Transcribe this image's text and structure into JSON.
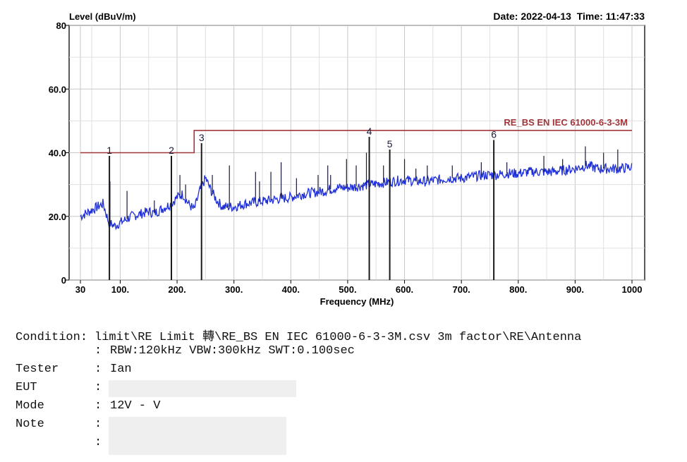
{
  "header": {
    "ylabel": "Level (dBuV/m)",
    "date_label": "Date:",
    "date": "2022-04-13",
    "time_label": "Time:",
    "time": "11:47:33"
  },
  "chart_data": {
    "type": "line",
    "xlabel": "Frequency (MHz)",
    "ylabel": "Level (dBuV/m)",
    "xlim": [
      30,
      1000
    ],
    "ylim": [
      0,
      80
    ],
    "x_ticks": [
      {
        "value": 30,
        "label": "30"
      },
      {
        "value": 100,
        "label": "100."
      },
      {
        "value": 200,
        "label": "200."
      },
      {
        "value": 300,
        "label": "300."
      },
      {
        "value": 400,
        "label": "400."
      },
      {
        "value": 500,
        "label": "500."
      },
      {
        "value": 600,
        "label": "600."
      },
      {
        "value": 700,
        "label": "700."
      },
      {
        "value": 800,
        "label": "800."
      },
      {
        "value": 900,
        "label": "900."
      },
      {
        "value": 1000,
        "label": "1000"
      }
    ],
    "y_ticks": [
      {
        "value": 0,
        "label": "0"
      },
      {
        "value": 20,
        "label": "20.0"
      },
      {
        "value": 40,
        "label": "40.0"
      },
      {
        "value": 60,
        "label": "60.0"
      },
      {
        "value": 80,
        "label": "80"
      }
    ],
    "grid": true,
    "limit_line": {
      "name": "RE_BS EN IEC 61000-6-3-3M",
      "color": "#a0353a",
      "segments": [
        {
          "x": [
            30,
            230
          ],
          "y": 40
        },
        {
          "x": [
            230,
            1000
          ],
          "y": 47
        }
      ]
    },
    "trace": {
      "color": "#1f2fd8",
      "x": [
        30,
        40,
        50,
        60,
        70,
        75,
        80,
        90,
        100,
        110,
        120,
        130,
        140,
        150,
        160,
        170,
        180,
        190,
        200,
        210,
        220,
        230,
        240,
        250,
        260,
        270,
        280,
        300,
        320,
        340,
        360,
        380,
        400,
        420,
        440,
        460,
        480,
        500,
        520,
        540,
        560,
        580,
        600,
        620,
        640,
        660,
        680,
        700,
        720,
        740,
        760,
        780,
        800,
        820,
        840,
        860,
        880,
        900,
        920,
        940,
        960,
        980,
        1000
      ],
      "y": [
        20,
        21,
        22,
        23,
        24,
        21,
        18,
        17,
        18,
        19,
        20,
        20.5,
        21,
        21.5,
        21,
        22,
        23,
        24,
        26,
        27,
        24,
        22,
        28,
        32,
        28,
        25,
        23,
        23,
        24,
        24.5,
        25,
        25.5,
        26,
        27,
        27.5,
        28,
        29,
        29,
        29.5,
        30,
        30.5,
        31,
        31.5,
        31,
        31,
        31.5,
        32,
        32,
        32.5,
        33,
        33,
        33.5,
        33.5,
        34,
        34,
        34,
        34.5,
        35,
        36,
        35,
        35,
        35,
        35.5
      ]
    },
    "spikes": [
      {
        "x": 82,
        "y": 31
      },
      {
        "x": 112,
        "y": 28
      },
      {
        "x": 160,
        "y": 25
      },
      {
        "x": 205,
        "y": 33
      },
      {
        "x": 215,
        "y": 30
      },
      {
        "x": 262,
        "y": 33
      },
      {
        "x": 292,
        "y": 36
      },
      {
        "x": 338,
        "y": 34
      },
      {
        "x": 345,
        "y": 31
      },
      {
        "x": 365,
        "y": 34
      },
      {
        "x": 383,
        "y": 37
      },
      {
        "x": 410,
        "y": 32
      },
      {
        "x": 448,
        "y": 33
      },
      {
        "x": 465,
        "y": 36
      },
      {
        "x": 470,
        "y": 33
      },
      {
        "x": 498,
        "y": 38
      },
      {
        "x": 515,
        "y": 36
      },
      {
        "x": 533,
        "y": 40
      },
      {
        "x": 563,
        "y": 36
      },
      {
        "x": 600,
        "y": 38
      },
      {
        "x": 620,
        "y": 35
      },
      {
        "x": 640,
        "y": 36
      },
      {
        "x": 684,
        "y": 36
      },
      {
        "x": 735,
        "y": 37
      },
      {
        "x": 780,
        "y": 37
      },
      {
        "x": 845,
        "y": 39
      },
      {
        "x": 878,
        "y": 38
      },
      {
        "x": 918,
        "y": 42
      },
      {
        "x": 950,
        "y": 40
      },
      {
        "x": 975,
        "y": 41
      }
    ],
    "markers": [
      {
        "label": "1",
        "x": 81,
        "y": 39
      },
      {
        "label": "2",
        "x": 190,
        "y": 39
      },
      {
        "label": "3",
        "x": 243,
        "y": 43
      },
      {
        "label": "4",
        "x": 538,
        "y": 45
      },
      {
        "label": "5",
        "x": 574,
        "y": 41
      },
      {
        "label": "6",
        "x": 757,
        "y": 44
      }
    ]
  },
  "info": [
    {
      "key": "Condition:",
      "colon": "",
      "value": "limit\\RE Limit 轉\\RE_BS EN IEC 61000-6-3-3M.csv 3m factor\\RE\\Antenna"
    },
    {
      "key": "",
      "colon": ":",
      "value": "RBW:120kHz VBW:300kHz SWT:0.100sec"
    },
    {
      "key": "Tester",
      "colon": ":",
      "value": "Ian"
    },
    {
      "key": "EUT",
      "colon": ":",
      "value": ""
    },
    {
      "key": "Mode",
      "colon": ":",
      "value": "12V - V"
    },
    {
      "key": "Note",
      "colon": ":",
      "value": ""
    },
    {
      "key": "",
      "colon": ":",
      "value": ""
    }
  ]
}
